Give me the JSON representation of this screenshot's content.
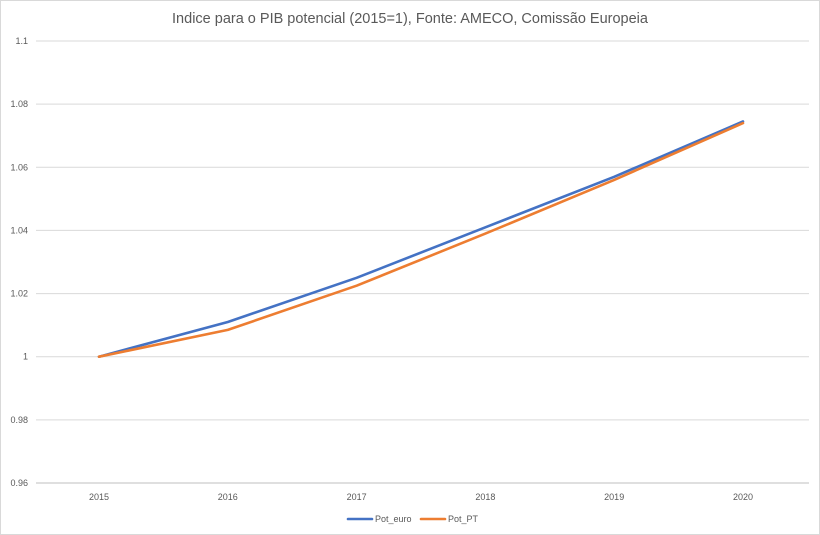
{
  "chart_data": {
    "type": "line",
    "title": "Indice para o PIB potencial (2015=1), Fonte: AMECO, Comissão Europeia",
    "xlabel": "",
    "ylabel": "",
    "categories": [
      "2015",
      "2016",
      "2017",
      "2018",
      "2019",
      "2020"
    ],
    "ylim": [
      0.96,
      1.1
    ],
    "yticks": [
      0.96,
      0.98,
      1,
      1.02,
      1.04,
      1.06,
      1.08,
      1.1
    ],
    "ytick_labels": [
      "0.96",
      "0.98",
      "1",
      "1.02",
      "1.04",
      "1.06",
      "1.08",
      "1.1"
    ],
    "grid": true,
    "legend_position": "bottom",
    "series": [
      {
        "name": "Pot_euro",
        "color": "#4472c4",
        "values": [
          1.0,
          1.011,
          1.025,
          1.041,
          1.057,
          1.0745
        ]
      },
      {
        "name": "Pot_PT",
        "color": "#ed7d31",
        "values": [
          1.0,
          1.0085,
          1.0225,
          1.039,
          1.056,
          1.074
        ]
      }
    ]
  }
}
